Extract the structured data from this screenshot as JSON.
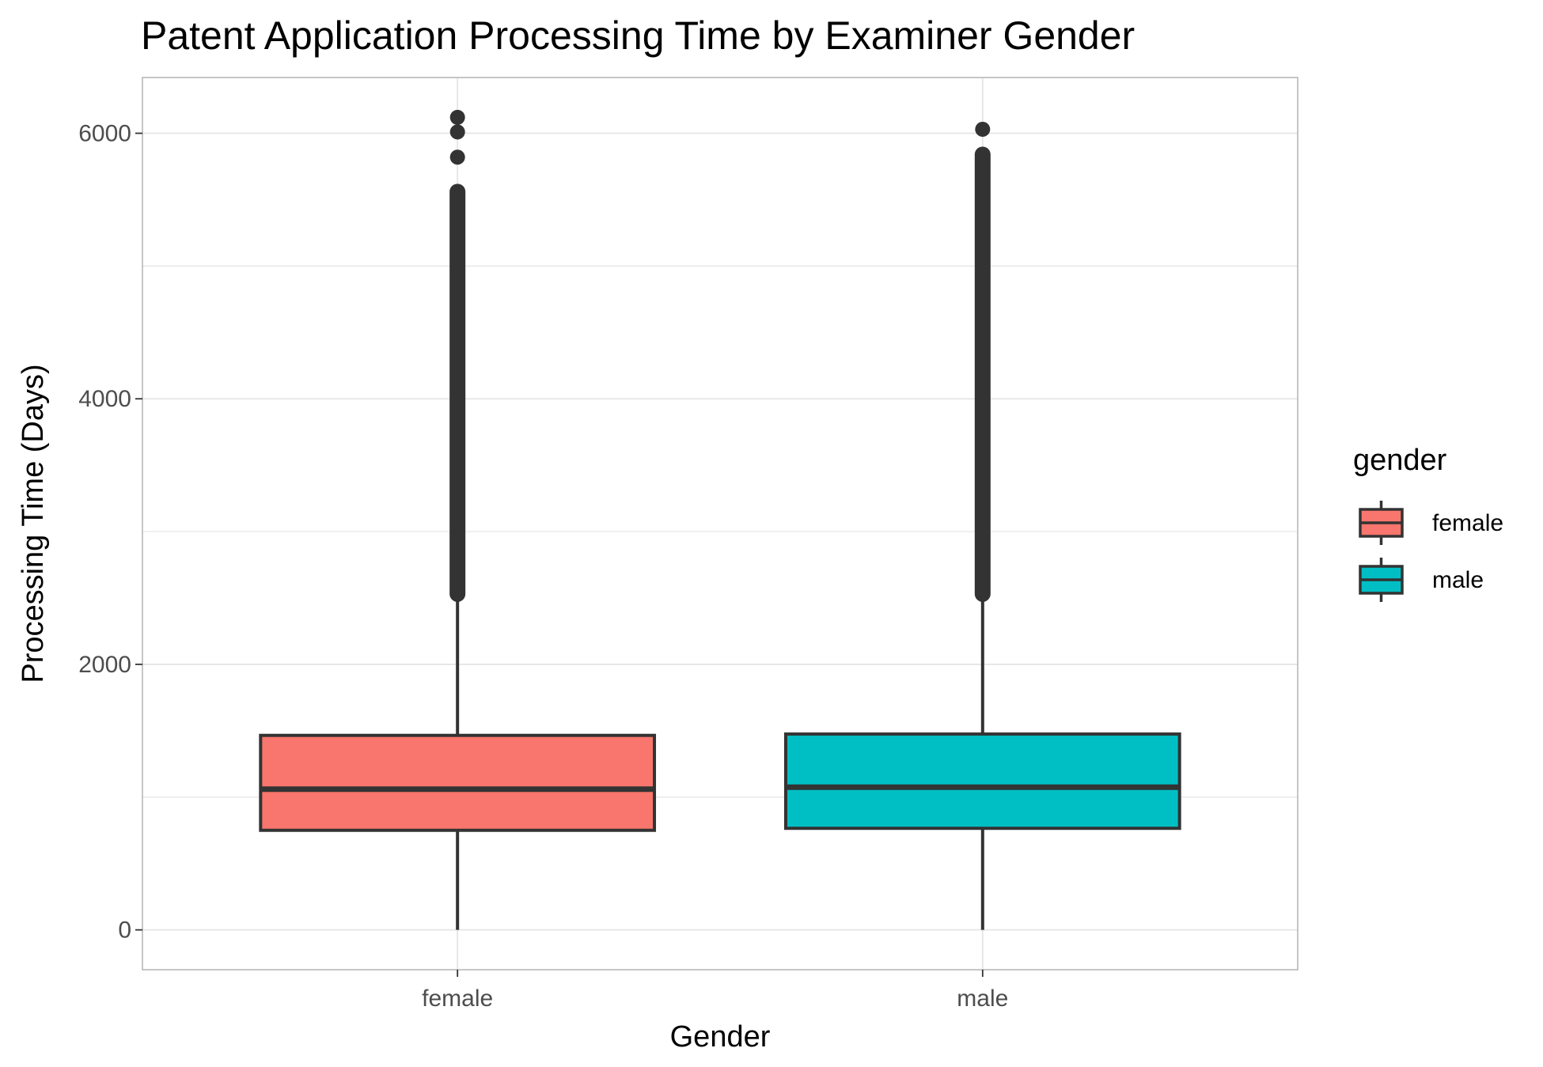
{
  "chart_data": {
    "type": "boxplot",
    "title": "Patent Application Processing Time by Examiner Gender",
    "xlabel": "Gender",
    "ylabel": "Processing Time (Days)",
    "categories": [
      "female",
      "male"
    ],
    "ylim": [
      -300,
      6420
    ],
    "y_major_ticks": [
      0,
      2000,
      4000,
      6000
    ],
    "y_minor_gridlines": [
      1000,
      3000,
      5000
    ],
    "grid": true,
    "legend": {
      "title": "gender",
      "position": "right",
      "entries": [
        "female",
        "male"
      ]
    },
    "colors": {
      "female": "#F8766D",
      "male": "#00BFC4",
      "outline": "#333333",
      "grid": "#e5e5e5",
      "panel_border": "#b3b3b3"
    },
    "series": [
      {
        "name": "female",
        "min": 0,
        "q1": 750,
        "median": 1060,
        "q3": 1465,
        "whisker_high": 2530,
        "outlier_band": [
          2530,
          5560
        ],
        "outliers": [
          5820,
          6010,
          6120
        ]
      },
      {
        "name": "male",
        "min": 0,
        "q1": 765,
        "median": 1075,
        "q3": 1475,
        "whisker_high": 2530,
        "outlier_band": [
          2530,
          5840
        ],
        "outliers": [
          6030
        ]
      }
    ]
  }
}
